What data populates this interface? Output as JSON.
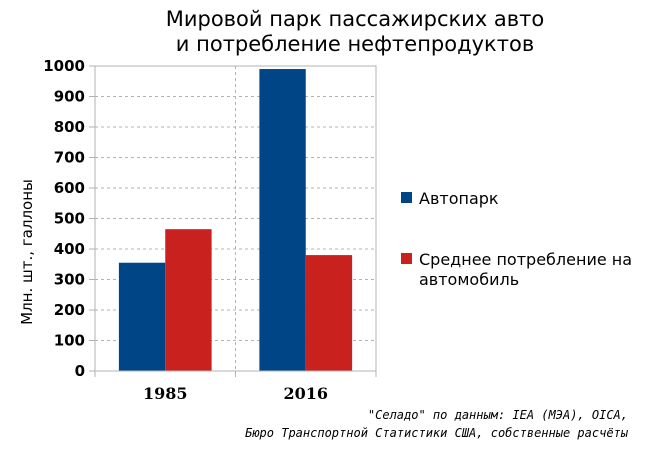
{
  "chart_data": {
    "type": "bar",
    "title_lines": [
      "Мировой парк пассажирских авто",
      "и потребление нефтепродуктов"
    ],
    "categories": [
      "1985",
      "2016"
    ],
    "series": [
      {
        "name": "Автопарк",
        "color": "#004586",
        "values": [
          355,
          990
        ]
      },
      {
        "name": "Среднее потребление на автомобиль",
        "legend_lines": [
          "Среднее потребление на",
          "автомобиль"
        ],
        "color": "#c9211e",
        "values": [
          465,
          380
        ]
      }
    ],
    "xlabel": "",
    "ylabel": "Млн. шт., галлоны",
    "ylim": [
      0,
      1000
    ],
    "yticks": [
      0,
      100,
      200,
      300,
      400,
      500,
      600,
      700,
      800,
      900,
      1000
    ],
    "grid": true,
    "legend_position": "right"
  },
  "source": {
    "line1": "\"Селадо\" по данным: IEA (МЭА), OICA,",
    "line2": "Бюро Транспортной Статистики США, собственные расчёты"
  }
}
